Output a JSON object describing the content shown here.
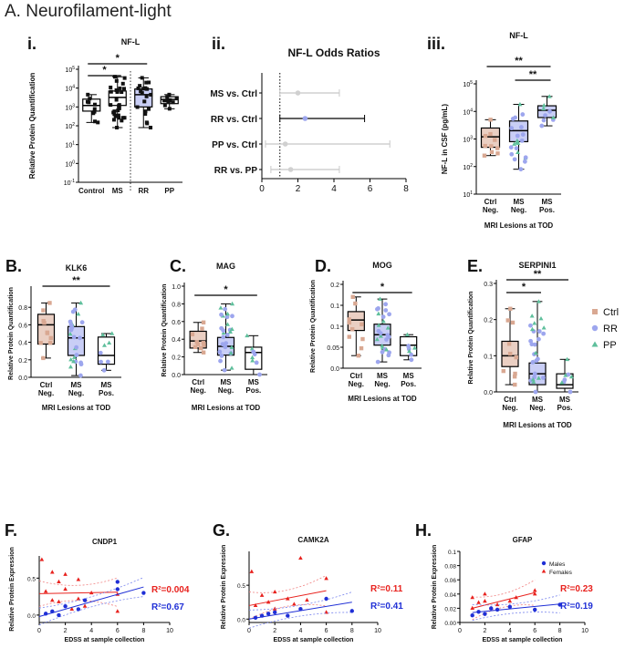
{
  "figure": {
    "section_title": "A. Neurofilament-light",
    "panel_letters": [
      "i.",
      "ii.",
      "iii.",
      "B.",
      "C.",
      "D.",
      "E.",
      "F.",
      "G.",
      "H."
    ]
  },
  "colors": {
    "ctrl": "#d9a892",
    "rr": "#9da6ee",
    "pp": "#5fbf9c",
    "males": "#1f2fd6",
    "females": "#e8221e",
    "gray_ci": "#c8c8c8"
  },
  "chart_data": [
    {
      "id": "Ai",
      "type": "box",
      "title": "NF-L",
      "ylabel": "Relative Protein Quantification",
      "yscale": "log10",
      "ylim": [
        0.1,
        100000
      ],
      "ytick_labels": [
        "10^-1",
        "10^0",
        "10^1",
        "10^2",
        "10^3",
        "10^4",
        "10^5"
      ],
      "categories": [
        "Control",
        "MS",
        "RR",
        "PP"
      ],
      "boxes": [
        {
          "name": "Control",
          "min": 150,
          "q1": 600,
          "median": 1200,
          "q3": 2600,
          "max": 4500
        },
        {
          "name": "MS",
          "min": 80,
          "q1": 1200,
          "median": 3200,
          "q3": 7000,
          "max": 40000
        },
        {
          "name": "RR",
          "min": 80,
          "q1": 1000,
          "median": 4500,
          "q3": 9000,
          "max": 35000
        },
        {
          "name": "PP",
          "min": 800,
          "q1": 1500,
          "median": 2500,
          "q3": 3500,
          "max": 4500
        }
      ],
      "significance": [
        {
          "from": "Control",
          "to": "MS",
          "label": "*"
        },
        {
          "from": "Control",
          "to": "RR",
          "label": "*"
        }
      ]
    },
    {
      "id": "Aii",
      "type": "forest",
      "title": "NF-L Odds Ratios",
      "xlim": [
        0,
        8
      ],
      "xticks": [
        0,
        2,
        4,
        6,
        8
      ],
      "reference_line": 1,
      "rows": [
        {
          "label": "MS vs. Ctrl",
          "or": 2.0,
          "lo": 1.0,
          "hi": 4.3,
          "significant": false
        },
        {
          "label": "RR vs. Ctrl",
          "or": 2.4,
          "lo": 1.0,
          "hi": 5.7,
          "significant": true
        },
        {
          "label": "PP vs. Ctrl",
          "or": 1.3,
          "lo": 0.2,
          "hi": 7.1,
          "significant": false
        },
        {
          "label": "RR vs. PP",
          "or": 1.6,
          "lo": 0.5,
          "hi": 4.3,
          "significant": false
        }
      ]
    },
    {
      "id": "Aiii",
      "type": "box",
      "title": "NF-L",
      "ylabel": "NF-L in CSF (pg/mL)",
      "xlabel": "MRI Lesions at TOD",
      "yscale": "log10",
      "ylim": [
        10,
        100000
      ],
      "ytick_labels": [
        "10^1",
        "10^2",
        "10^3",
        "10^4",
        "10^5"
      ],
      "categories": [
        "Ctrl Neg.",
        "MS Neg.",
        "MS Pos."
      ],
      "boxes": [
        {
          "name": "Ctrl Neg.",
          "min": 250,
          "q1": 500,
          "median": 1200,
          "q3": 2500,
          "max": 5000
        },
        {
          "name": "MS Neg.",
          "min": 80,
          "q1": 800,
          "median": 2000,
          "q3": 4500,
          "max": 18000
        },
        {
          "name": "MS Pos.",
          "min": 3000,
          "q1": 6000,
          "median": 11000,
          "q3": 16000,
          "max": 35000
        }
      ],
      "significance": [
        {
          "from": "Ctrl Neg.",
          "to": "MS Pos.",
          "label": "**"
        },
        {
          "from": "MS Neg.",
          "to": "MS Pos.",
          "label": "**"
        }
      ]
    },
    {
      "id": "B",
      "type": "box",
      "title": "KLK6",
      "ylabel": "Relative Protein Quantification",
      "xlabel": "MRI Lesions at TOD",
      "ylim": [
        0,
        1.0
      ],
      "yticks": [
        0.0,
        0.2,
        0.4,
        0.6,
        0.8
      ],
      "categories": [
        "Ctrl Neg.",
        "MS Neg.",
        "MS Pos."
      ],
      "boxes": [
        {
          "name": "Ctrl Neg.",
          "min": 0.22,
          "q1": 0.38,
          "median": 0.6,
          "q3": 0.72,
          "max": 0.85
        },
        {
          "name": "MS Neg.",
          "min": 0.02,
          "q1": 0.25,
          "median": 0.45,
          "q3": 0.58,
          "max": 0.85
        },
        {
          "name": "MS Pos.",
          "min": 0.08,
          "q1": 0.15,
          "median": 0.25,
          "q3": 0.46,
          "max": 0.5
        }
      ],
      "significance": [
        {
          "from": "Ctrl Neg.",
          "to": "MS Pos.",
          "label": "**"
        }
      ]
    },
    {
      "id": "C",
      "type": "box",
      "title": "MAG",
      "ylabel": "Relative Protein Quantification",
      "xlabel": "MRI Lesions at TOD",
      "ylim": [
        0,
        1.0
      ],
      "yticks": [
        0.0,
        0.2,
        0.4,
        0.6,
        0.8,
        1.0
      ],
      "categories": [
        "Ctrl Neg.",
        "MS Neg.",
        "MS Pos."
      ],
      "boxes": [
        {
          "name": "Ctrl Neg.",
          "min": 0.25,
          "q1": 0.3,
          "median": 0.38,
          "q3": 0.49,
          "max": 0.59
        },
        {
          "name": "MS Neg.",
          "min": 0.05,
          "q1": 0.22,
          "median": 0.32,
          "q3": 0.42,
          "max": 0.8
        },
        {
          "name": "MS Pos.",
          "min": 0.0,
          "q1": 0.06,
          "median": 0.25,
          "q3": 0.31,
          "max": 0.44
        }
      ],
      "significance": [
        {
          "from": "Ctrl Neg.",
          "to": "MS Pos.",
          "label": "*"
        }
      ]
    },
    {
      "id": "D",
      "type": "box",
      "title": "MOG",
      "ylabel": "Relative Protein Quantification",
      "xlabel": "MRI Lesions at TOD",
      "ylim": [
        0,
        0.2
      ],
      "yticks": [
        0.0,
        0.05,
        0.1,
        0.15,
        0.2
      ],
      "categories": [
        "Ctrl Neg.",
        "MS Neg.",
        "MS Pos."
      ],
      "boxes": [
        {
          "name": "Ctrl Neg.",
          "min": 0.03,
          "q1": 0.09,
          "median": 0.115,
          "q3": 0.135,
          "max": 0.17
        },
        {
          "name": "MS Neg.",
          "min": 0.015,
          "q1": 0.055,
          "median": 0.08,
          "q3": 0.105,
          "max": 0.165
        },
        {
          "name": "MS Pos.",
          "min": 0.02,
          "q1": 0.03,
          "median": 0.055,
          "q3": 0.075,
          "max": 0.08
        }
      ],
      "significance": [
        {
          "from": "Ctrl Neg.",
          "to": "MS Pos.",
          "label": "*"
        }
      ]
    },
    {
      "id": "E",
      "type": "box",
      "title": "SERPINI1",
      "ylabel": "Relative Protein Quantification",
      "xlabel": "MRI Lesions at TOD",
      "ylim": [
        0,
        0.3
      ],
      "yticks": [
        0.0,
        0.1,
        0.2,
        0.3
      ],
      "categories": [
        "Ctrl Neg.",
        "MS Neg.",
        "MS Pos."
      ],
      "boxes": [
        {
          "name": "Ctrl Neg.",
          "min": 0.02,
          "q1": 0.07,
          "median": 0.1,
          "q3": 0.14,
          "max": 0.23
        },
        {
          "name": "MS Neg.",
          "min": 0.0,
          "q1": 0.02,
          "median": 0.05,
          "q3": 0.08,
          "max": 0.25
        },
        {
          "name": "MS Pos.",
          "min": 0.0,
          "q1": 0.01,
          "median": 0.02,
          "q3": 0.05,
          "max": 0.09
        }
      ],
      "significance": [
        {
          "from": "Ctrl Neg.",
          "to": "MS Neg.",
          "label": "*"
        },
        {
          "from": "Ctrl Neg.",
          "to": "MS Pos.",
          "label": "**"
        }
      ],
      "legend": [
        "Ctrl",
        "RR",
        "PP"
      ]
    },
    {
      "id": "F",
      "type": "scatter",
      "title": "CNDP1",
      "ylabel": "Relative Protein Expression",
      "xlabel": "EDSS at sample collection",
      "xlim": [
        0,
        10
      ],
      "xticks": [
        0,
        2,
        4,
        6,
        8,
        10
      ],
      "ylim": [
        -0.1,
        0.8
      ],
      "yticks": [
        0.0,
        0.5
      ],
      "series": [
        {
          "name": "Females",
          "x": [
            0.2,
            0.5,
            1.0,
            1.0,
            1.5,
            1.5,
            2.0,
            2.0,
            2.5,
            3.0,
            3.0,
            3.5,
            4.0,
            6.0,
            6.0
          ],
          "y": [
            0.75,
            0.32,
            0.58,
            0.2,
            0.45,
            0.18,
            0.35,
            0.55,
            0.08,
            0.22,
            0.48,
            0.12,
            0.3,
            0.28,
            0.05
          ],
          "fit": {
            "x0": 0,
            "y0": 0.29,
            "x1": 6,
            "y1": 0.31
          },
          "r2_label": "R²=0.004"
        },
        {
          "name": "Males",
          "x": [
            0.5,
            1.0,
            1.5,
            2.0,
            3.0,
            3.5,
            6.0,
            6.0,
            8.0
          ],
          "y": [
            0.02,
            0.05,
            0.0,
            0.12,
            0.08,
            0.2,
            0.45,
            0.35,
            0.3
          ],
          "fit": {
            "x0": 0,
            "y0": -0.02,
            "x1": 8,
            "y1": 0.38
          },
          "r2_label": "R²=0.67"
        }
      ]
    },
    {
      "id": "G",
      "type": "scatter",
      "title": "CAMK2A",
      "ylabel": "Relative Protein Expression",
      "xlabel": "EDSS at sample collection",
      "xlim": [
        0,
        10
      ],
      "xticks": [
        0,
        2,
        4,
        6,
        8,
        10
      ],
      "ylim": [
        -0.05,
        1.0
      ],
      "yticks": [
        0.0,
        0.5
      ],
      "series": [
        {
          "name": "Females",
          "x": [
            0.2,
            0.5,
            1.0,
            1.0,
            1.5,
            2.0,
            2.0,
            3.0,
            3.5,
            4.0,
            4.5,
            6.0,
            6.0
          ],
          "y": [
            0.7,
            0.2,
            0.35,
            0.05,
            0.25,
            0.4,
            0.15,
            0.3,
            0.22,
            0.9,
            0.28,
            0.6,
            0.1
          ],
          "fit": {
            "x0": 0,
            "y0": 0.2,
            "x1": 6,
            "y1": 0.42
          },
          "r2_label": "R²=0.11"
        },
        {
          "name": "Males",
          "x": [
            0.5,
            1.0,
            1.5,
            2.0,
            3.0,
            4.0,
            6.0,
            8.0
          ],
          "y": [
            0.02,
            0.05,
            0.08,
            0.1,
            0.05,
            0.15,
            0.3,
            0.12
          ],
          "fit": {
            "x0": 0,
            "y0": 0.0,
            "x1": 8,
            "y1": 0.25
          },
          "r2_label": "R²=0.41"
        }
      ]
    },
    {
      "id": "H",
      "type": "scatter",
      "title": "GFAP",
      "ylabel": "Relative Protein Expression",
      "xlabel": "EDSS at sample collection",
      "xlim": [
        0,
        10
      ],
      "xticks": [
        0,
        2,
        4,
        6,
        8,
        10
      ],
      "ylim": [
        0,
        0.1
      ],
      "yticks": [
        0.0,
        0.02,
        0.04,
        0.06,
        0.08,
        0.1
      ],
      "yticklabels": [
        "0.00",
        "0.02",
        "0.04",
        "0.06",
        "0.08",
        "0.1"
      ],
      "legend": [
        "Males",
        "Females"
      ],
      "series": [
        {
          "name": "Females",
          "x": [
            1.0,
            1.0,
            1.5,
            2.0,
            2.0,
            2.5,
            3.0,
            4.0,
            4.5,
            6.0,
            6.0
          ],
          "y": [
            0.035,
            0.02,
            0.028,
            0.03,
            0.04,
            0.02,
            0.025,
            0.03,
            0.035,
            0.045,
            0.04
          ],
          "fit": {
            "x0": 1,
            "y0": 0.02,
            "x1": 6,
            "y1": 0.042
          },
          "r2_label": "R²=0.23"
        },
        {
          "name": "Males",
          "x": [
            1.0,
            1.5,
            2.0,
            2.5,
            3.0,
            4.0,
            6.0,
            8.0
          ],
          "y": [
            0.01,
            0.015,
            0.012,
            0.02,
            0.018,
            0.022,
            0.018,
            0.025
          ],
          "fit": {
            "x0": 1,
            "y0": 0.014,
            "x1": 8,
            "y1": 0.026
          },
          "r2_label": "R²=0.19"
        }
      ]
    }
  ]
}
